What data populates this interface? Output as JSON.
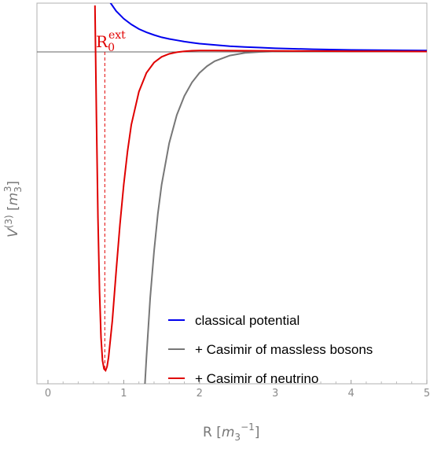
{
  "chart_data": {
    "type": "line",
    "xlabel": {
      "main": "R [",
      "sym": "m",
      "sub": "3",
      "sup": "−1",
      "close": "]"
    },
    "ylabel": {
      "main": "V",
      "sup": "(3)",
      "mid": " [",
      "sym": "m",
      "sub": "3",
      "sup2": "3",
      "close": "]"
    },
    "xlim": [
      0,
      5
    ],
    "ylim": [
      -1.0,
      0.14
    ],
    "x_ticks": [
      0,
      1,
      2,
      3,
      4,
      5
    ],
    "tick_labels": [
      "0",
      "1",
      "2",
      "3",
      "4",
      "5"
    ],
    "grid": false,
    "legend_position": "bottom-right",
    "annotation": {
      "text": "R",
      "sub": "0",
      "sup": "ext",
      "x": 0.75
    },
    "series": [
      {
        "name": "classical potential",
        "color": "#0000ee",
        "x": [
          0.75,
          0.8,
          0.9,
          1.0,
          1.1,
          1.2,
          1.3,
          1.4,
          1.5,
          1.6,
          1.7,
          1.8,
          1.9,
          2.0,
          2.2,
          2.4,
          2.6,
          2.8,
          3.0,
          3.5,
          4.0,
          4.5,
          5.0
        ],
        "y": [
          0.178,
          0.156,
          0.123,
          0.1,
          0.083,
          0.069,
          0.059,
          0.051,
          0.044,
          0.039,
          0.035,
          0.031,
          0.028,
          0.025,
          0.021,
          0.017,
          0.015,
          0.013,
          0.011,
          0.008,
          0.006,
          0.005,
          0.004
        ]
      },
      {
        "name": "+ Casimir of massless bosons",
        "color": "#777777",
        "x": [
          1.28,
          1.3,
          1.35,
          1.4,
          1.45,
          1.5,
          1.6,
          1.7,
          1.8,
          1.9,
          2.0,
          2.1,
          2.2,
          2.4,
          2.6,
          2.8,
          3.0,
          3.2,
          3.5,
          4.0,
          4.5,
          5.0
        ],
        "y": [
          -1.0,
          -0.92,
          -0.74,
          -0.6,
          -0.488,
          -0.4,
          -0.275,
          -0.19,
          -0.133,
          -0.092,
          -0.063,
          -0.043,
          -0.028,
          -0.011,
          -0.003,
          0.0,
          0.0015,
          0.002,
          0.002,
          0.0018,
          0.0015,
          0.0012
        ]
      },
      {
        "name": "+ Casimir of neutrino",
        "color": "#e00000",
        "x": [
          0.62,
          0.64,
          0.66,
          0.68,
          0.7,
          0.72,
          0.74,
          0.76,
          0.78,
          0.8,
          0.85,
          0.9,
          0.95,
          1.0,
          1.05,
          1.1,
          1.2,
          1.3,
          1.4,
          1.5,
          1.6,
          1.7,
          1.8,
          1.9,
          2.0,
          2.2,
          2.4,
          2.6,
          3.0,
          3.5,
          4.0,
          4.5,
          5.0
        ],
        "y": [
          0.14,
          -0.2,
          -0.5,
          -0.72,
          -0.86,
          -0.93,
          -0.955,
          -0.96,
          -0.948,
          -0.92,
          -0.81,
          -0.66,
          -0.52,
          -0.4,
          -0.3,
          -0.22,
          -0.12,
          -0.063,
          -0.032,
          -0.015,
          -0.006,
          -0.001,
          0.002,
          0.0035,
          0.004,
          0.004,
          0.0038,
          0.0035,
          0.003,
          0.0025,
          0.002,
          0.0016,
          0.0013
        ]
      }
    ]
  }
}
